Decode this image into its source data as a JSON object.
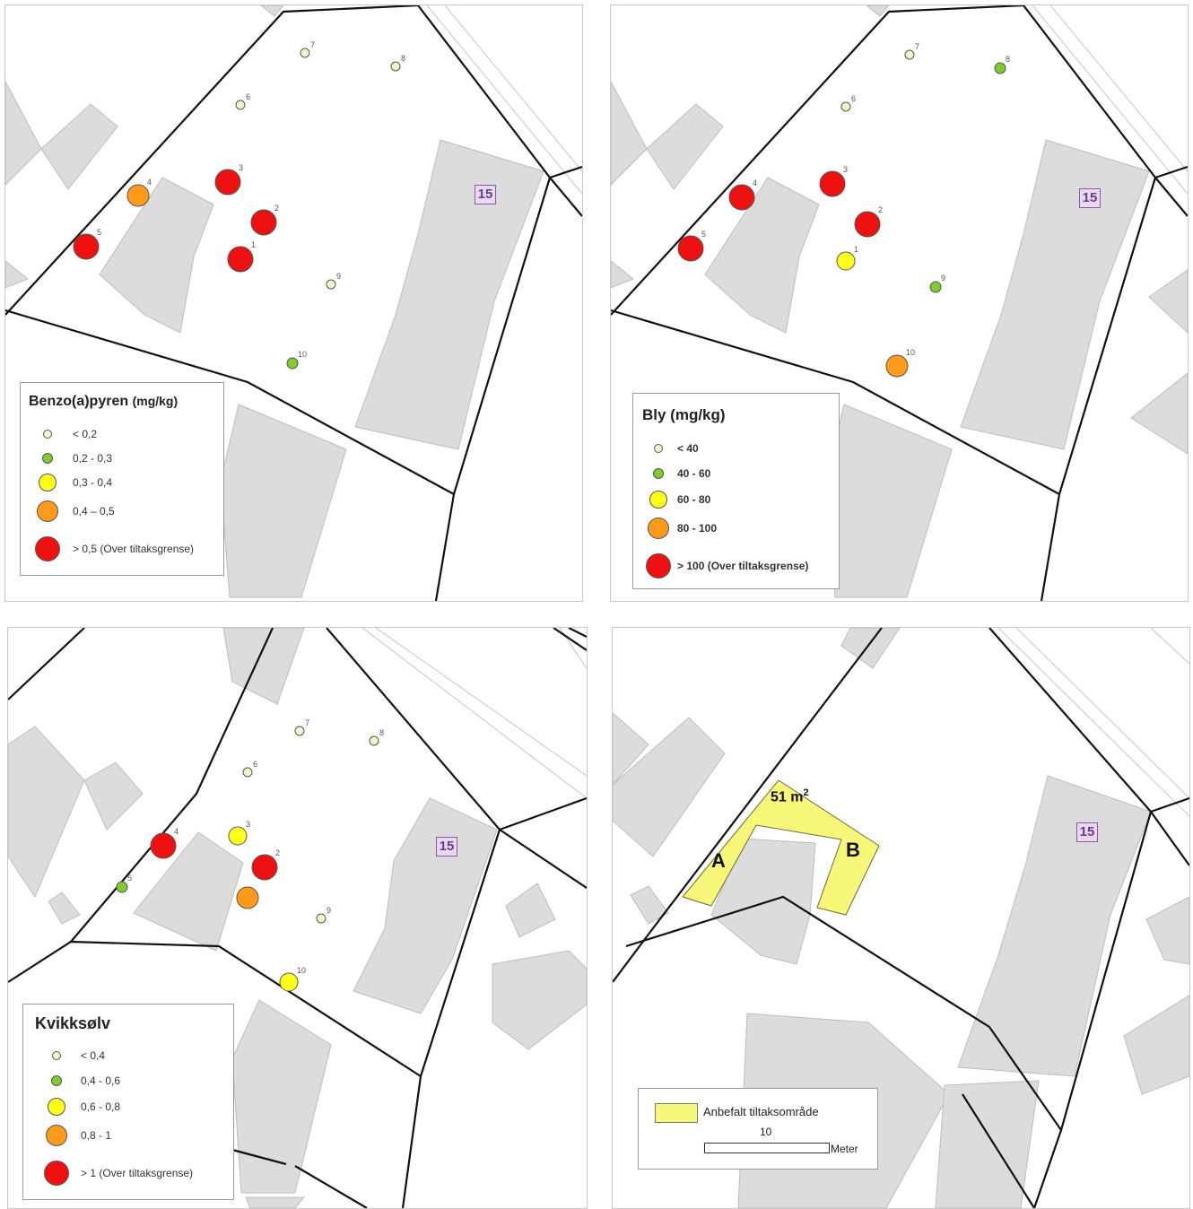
{
  "map1": {
    "legend": {
      "title": "Benzo(a)pyren",
      "unit": "(mg/kg)",
      "classes": [
        {
          "label": "< 0,2",
          "color": "#f2f7c8"
        },
        {
          "label": "0,2 - 0,3",
          "color": "#7fcc2e"
        },
        {
          "label": "0,3 - 0,4",
          "color": "#ffff1a"
        },
        {
          "label": "0,4 – 0,5",
          "color": "#ff9a1a"
        },
        {
          "label": "> 0,5 (Over tiltaksgrense)",
          "color": "#ee1111"
        }
      ]
    },
    "points": [
      {
        "id": "1",
        "class": 4
      },
      {
        "id": "2",
        "class": 4
      },
      {
        "id": "3",
        "class": 4
      },
      {
        "id": "4",
        "class": 3
      },
      {
        "id": "5",
        "class": 4
      },
      {
        "id": "6",
        "class": 0
      },
      {
        "id": "7",
        "class": 0
      },
      {
        "id": "8",
        "class": 0
      },
      {
        "id": "9",
        "class": 0
      },
      {
        "id": "10",
        "class": 1
      }
    ],
    "badge": "15"
  },
  "map2": {
    "legend": {
      "title": "Bly (mg/kg)",
      "classes": [
        {
          "label": "< 40",
          "color": "#f2f7c8"
        },
        {
          "label": "40 - 60",
          "color": "#7fcc2e"
        },
        {
          "label": "60 - 80",
          "color": "#ffff1a"
        },
        {
          "label": "80 - 100",
          "color": "#ff9a1a"
        },
        {
          "label": "> 100 (Over tiltaksgrense)",
          "color": "#ee1111"
        }
      ]
    },
    "points": [
      {
        "id": "1",
        "class": 2
      },
      {
        "id": "2",
        "class": 4
      },
      {
        "id": "3",
        "class": 4
      },
      {
        "id": "4",
        "class": 4
      },
      {
        "id": "5",
        "class": 4
      },
      {
        "id": "6",
        "class": 0
      },
      {
        "id": "7",
        "class": 0
      },
      {
        "id": "8",
        "class": 1
      },
      {
        "id": "9",
        "class": 1
      },
      {
        "id": "10",
        "class": 3
      }
    ],
    "badge": "15"
  },
  "map3": {
    "legend": {
      "title": "Kvikksølv",
      "classes": [
        {
          "label": "< 0,4",
          "color": "#f2f7c8"
        },
        {
          "label": "0,4 - 0,6",
          "color": "#7fcc2e"
        },
        {
          "label": "0,6 - 0,8",
          "color": "#ffff1a"
        },
        {
          "label": "0,8 - 1",
          "color": "#ff9a1a"
        },
        {
          "label": "> 1 (Over tiltaksgrense)",
          "color": "#ee1111"
        }
      ]
    },
    "points": [
      {
        "id": "",
        "class": 3
      },
      {
        "id": "2",
        "class": 4
      },
      {
        "id": "3",
        "class": 2
      },
      {
        "id": "4",
        "class": 4
      },
      {
        "id": "5",
        "class": 1
      },
      {
        "id": "6",
        "class": 0
      },
      {
        "id": "7",
        "class": 0
      },
      {
        "id": "8",
        "class": 0
      },
      {
        "id": "9",
        "class": 0
      },
      {
        "id": "10",
        "class": 2
      }
    ],
    "badge": "15"
  },
  "map4": {
    "area_label": "51 m",
    "area_sup": "2",
    "label_a": "A",
    "label_b": "B",
    "legend_item": "Anbefalt tiltaksområde",
    "scale_value": "10",
    "scale_unit": "Meter",
    "badge": "15",
    "area_color": "#f7f77a"
  }
}
